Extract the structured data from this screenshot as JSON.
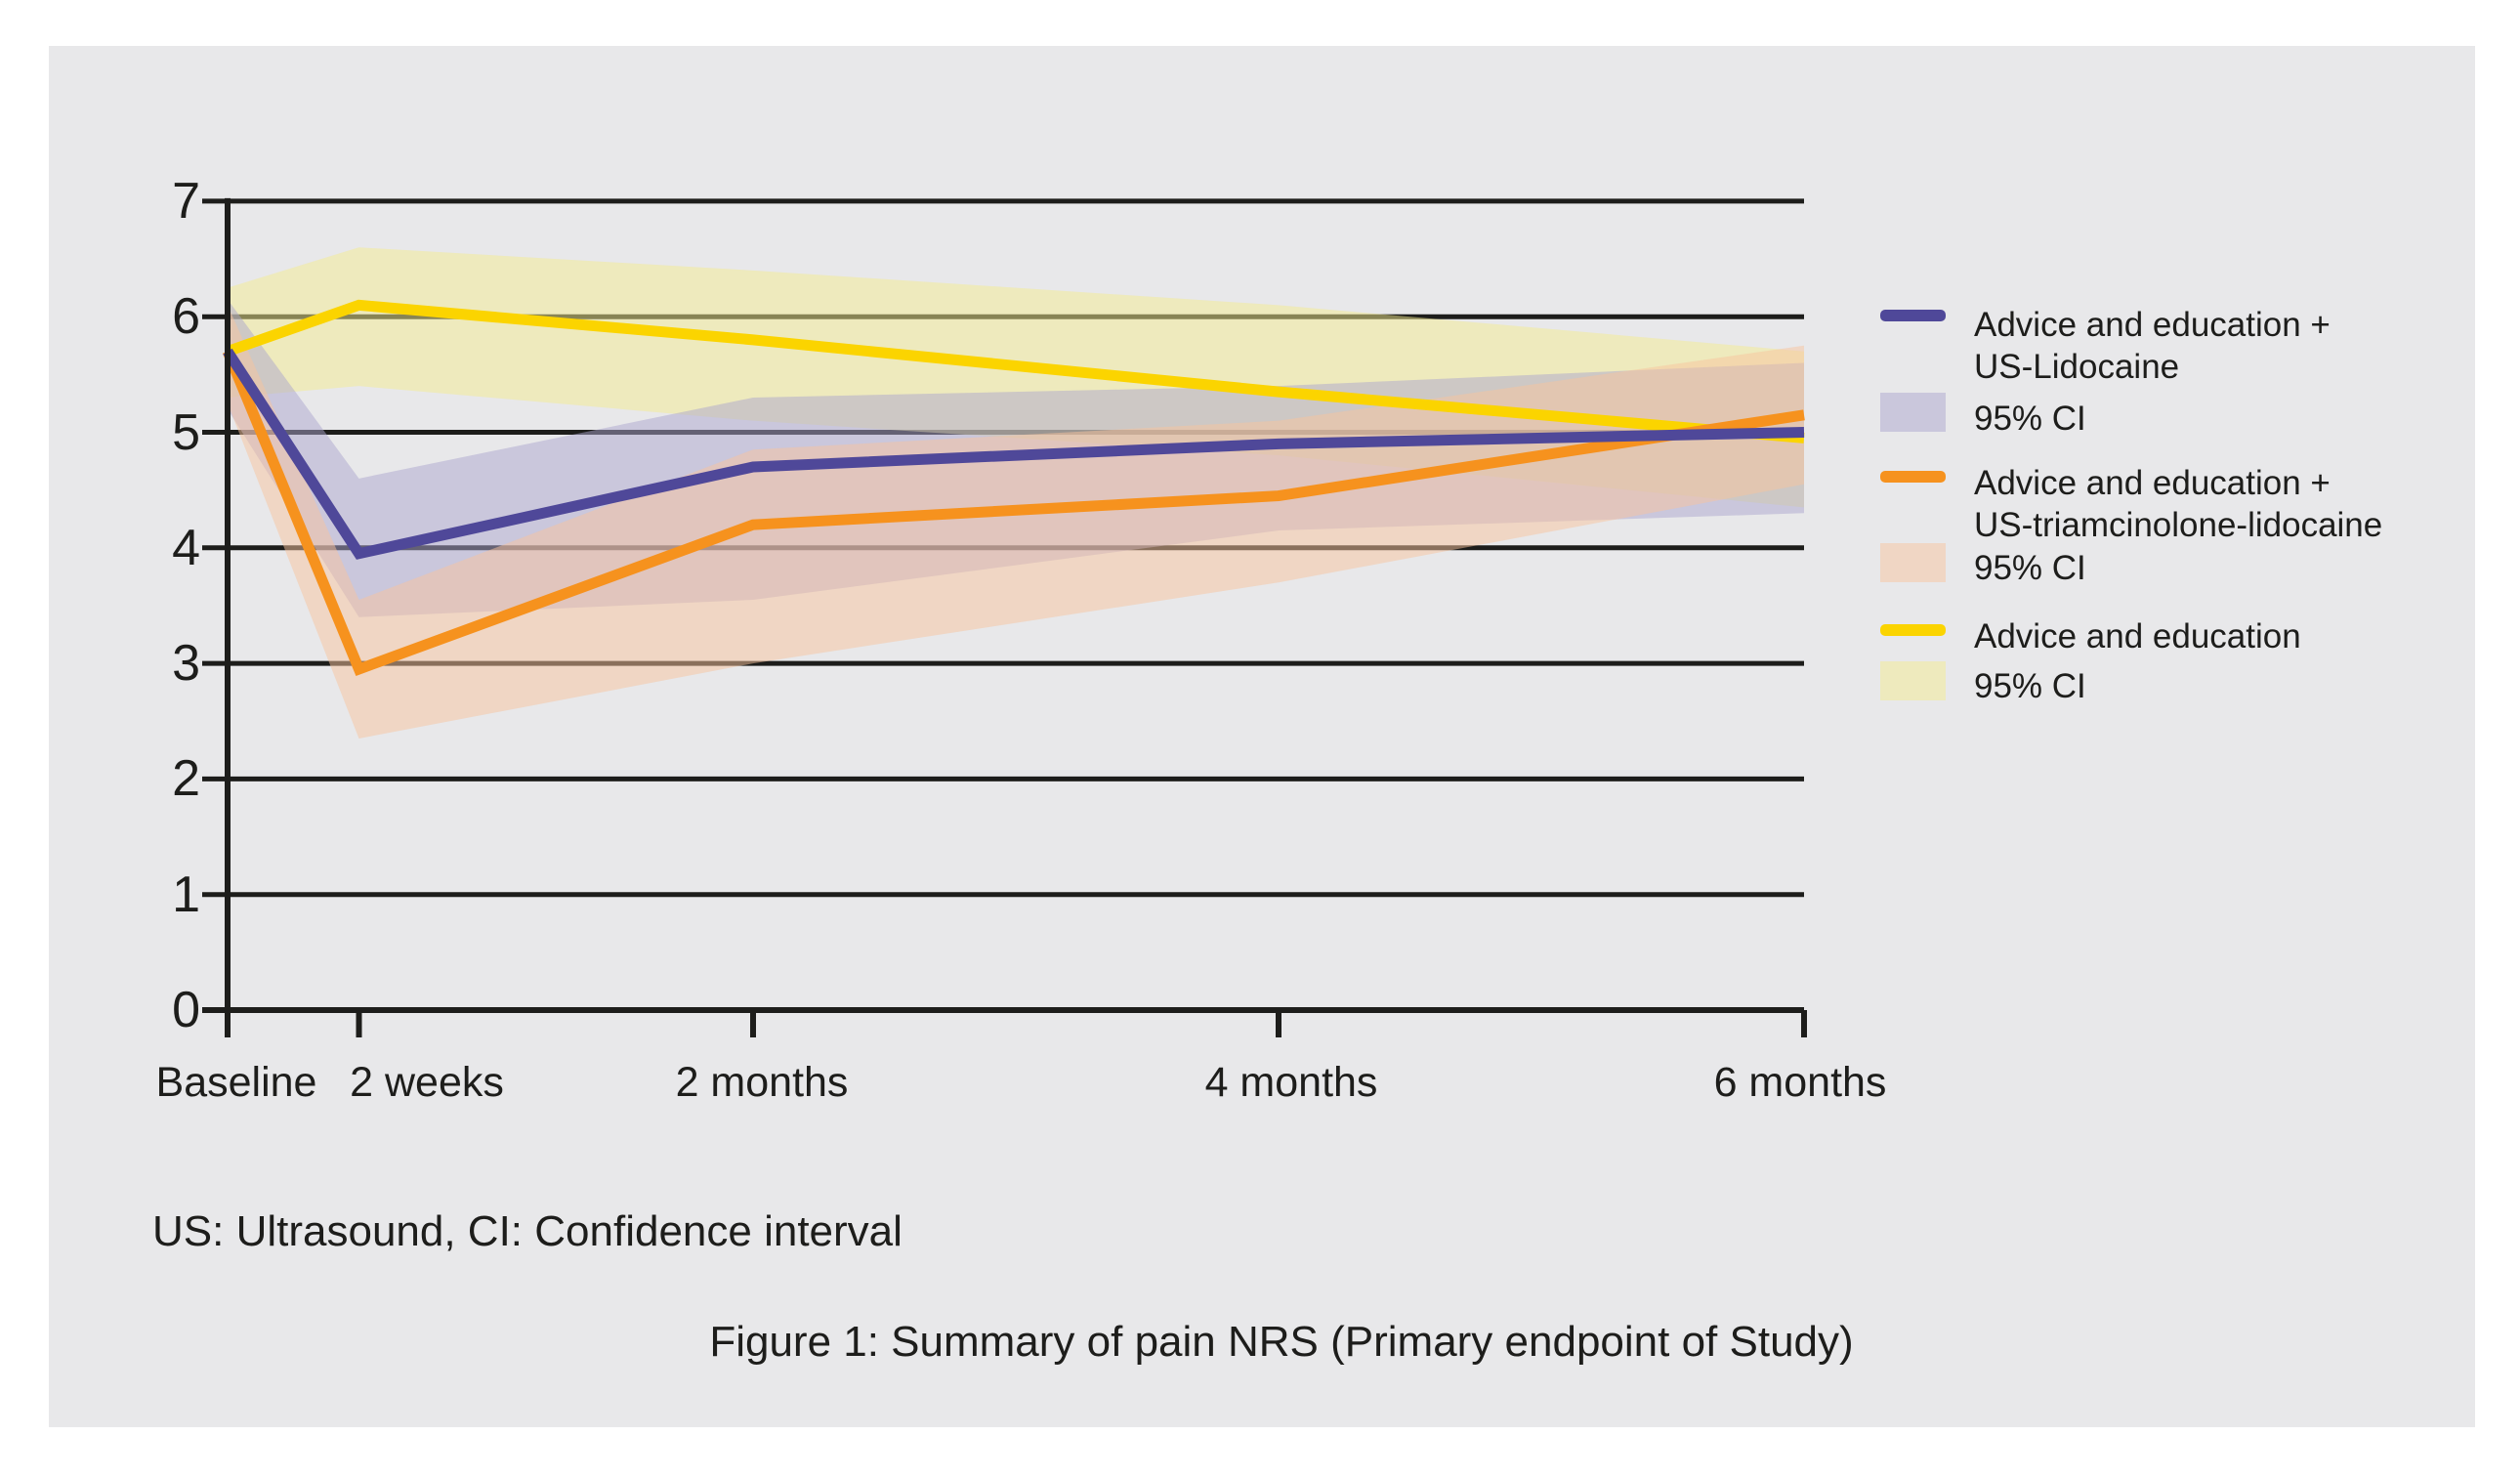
{
  "figure": {
    "abbreviation_note": "US: Ultrasound, CI: Confidence interval",
    "caption": "Figure 1: Summary of pain NRS (Primary endpoint of Study)"
  },
  "colors": {
    "background_panel": "#e8e8ea",
    "axis_and_text": "#1d1d1b",
    "series_purple_line": "#4f4899",
    "series_purple_ci": "rgba(172,166,206,0.5)",
    "series_orange_line": "#f6921e",
    "series_orange_ci": "rgba(248,196,158,0.5)",
    "series_yellow_line": "#fbd400",
    "series_yellow_ci": "rgba(244,236,144,0.5)"
  },
  "axes": {
    "y_tick_labels": [
      "7",
      "6",
      "5",
      "4",
      "3",
      "2",
      "1",
      "0"
    ],
    "x_tick_labels": [
      "Baseline",
      "2 weeks",
      "2 months",
      "4 months",
      "6 months"
    ]
  },
  "legend": {
    "items": [
      {
        "swatch": "line",
        "series": "purple",
        "line1": "Advice and education +",
        "line2": "US-Lidocaine"
      },
      {
        "swatch": "box",
        "series": "purple",
        "line1": "95% CI"
      },
      {
        "swatch": "line",
        "series": "orange",
        "line1": "Advice and education +",
        "line2": "US-triamcinolone-lidocaine"
      },
      {
        "swatch": "box",
        "series": "orange",
        "line1": "95% CI"
      },
      {
        "swatch": "line",
        "series": "yellow",
        "line1": "Advice and education"
      },
      {
        "swatch": "box",
        "series": "yellow",
        "line1": "95% CI"
      }
    ]
  },
  "chart_data": {
    "type": "line",
    "title": "Figure 1: Summary of pain NRS (Primary endpoint of Study)",
    "categories": [
      "Baseline",
      "2 weeks",
      "2 months",
      "4 months",
      "6 months"
    ],
    "x_months": [
      0,
      0.5,
      2,
      4,
      6
    ],
    "ylim": [
      0,
      7
    ],
    "y_gridlines": [
      0,
      1,
      2,
      3,
      4,
      5,
      6,
      7
    ],
    "legend_position": "right",
    "series": [
      {
        "name": "Advice and education + US-Lidocaine",
        "line_color": "#4f4899",
        "ci_label": "95% CI",
        "ci_fill": "rgba(172,166,206,0.5)",
        "values": [
          5.7,
          3.95,
          4.7,
          4.9,
          5.0
        ],
        "ci_upper": [
          6.15,
          4.6,
          5.3,
          5.4,
          5.6
        ],
        "ci_lower": [
          5.2,
          3.4,
          3.55,
          4.15,
          4.3
        ]
      },
      {
        "name": "Advice and education + US-triamcinolone-lidocaine",
        "line_color": "#f6921e",
        "ci_label": "95% CI",
        "ci_fill": "rgba(248,196,158,0.5)",
        "values": [
          5.7,
          2.95,
          4.2,
          4.45,
          5.15
        ],
        "ci_upper": [
          6.1,
          3.55,
          4.85,
          5.1,
          5.75
        ],
        "ci_lower": [
          5.25,
          2.35,
          3.0,
          3.7,
          4.55
        ]
      },
      {
        "name": "Advice and education",
        "line_color": "#fbd400",
        "ci_label": "95% CI",
        "ci_fill": "rgba(244,236,144,0.5)",
        "values": [
          5.7,
          6.1,
          5.8,
          5.35,
          4.95
        ],
        "ci_upper": [
          6.25,
          6.6,
          6.4,
          6.1,
          5.7
        ],
        "ci_lower": [
          5.3,
          5.4,
          5.1,
          4.8,
          4.35
        ]
      }
    ],
    "band_draw_order": [
      2,
      0,
      1
    ],
    "line_draw_order": [
      2,
      1,
      0
    ]
  }
}
